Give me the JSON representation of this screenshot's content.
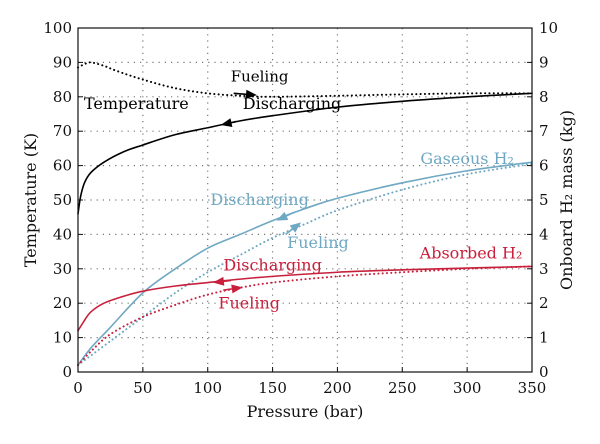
{
  "chart_data": {
    "type": "line",
    "xlabel": "Pressure (bar)",
    "ylabel_left": "Temperature (K)",
    "ylabel_right": "Onboard H₂ mass (kg)",
    "xlim": [
      0,
      350
    ],
    "ylim_left": [
      0,
      100
    ],
    "ylim_right": [
      0,
      10
    ],
    "grid": true,
    "x_ticks": [
      "0",
      "50",
      "100",
      "150",
      "200",
      "250",
      "300",
      "350"
    ],
    "y_left_ticks": [
      "0",
      "10",
      "20",
      "30",
      "40",
      "50",
      "60",
      "70",
      "80",
      "90",
      "100"
    ],
    "y_right_ticks": [
      "0",
      "1",
      "2",
      "3",
      "4",
      "5",
      "6",
      "7",
      "8",
      "9",
      "10"
    ],
    "colors": {
      "temperature": "#000000",
      "gaseous": "#6fa8c2",
      "absorbed": "#c8203c"
    },
    "series": [
      {
        "name": "Temperature",
        "mode": "Discharging",
        "axis": "left",
        "style": "solid",
        "color": "#000000",
        "x": [
          0,
          2,
          5,
          10,
          20,
          35,
          50,
          75,
          100,
          125,
          150,
          200,
          250,
          300,
          350
        ],
        "y": [
          46,
          51,
          55,
          58,
          61,
          64,
          66,
          69,
          71,
          73,
          74.5,
          77,
          78.7,
          80,
          81
        ]
      },
      {
        "name": "Temperature",
        "mode": "Fueling",
        "axis": "left",
        "style": "dotted",
        "color": "#000000",
        "x": [
          0,
          5,
          10,
          20,
          30,
          50,
          75,
          100,
          125,
          150,
          200,
          250,
          300,
          350
        ],
        "y": [
          88.5,
          89.5,
          90,
          89,
          87.5,
          85,
          82.5,
          81,
          80.3,
          80,
          80.3,
          80.7,
          81,
          81
        ]
      },
      {
        "name": "Gaseous H₂",
        "mode": "Discharging",
        "axis": "right",
        "style": "solid",
        "color": "#6fa8c2",
        "x": [
          0,
          10,
          25,
          50,
          75,
          100,
          125,
          150,
          175,
          200,
          250,
          300,
          350
        ],
        "y": [
          0.2,
          0.7,
          1.3,
          2.3,
          3.0,
          3.6,
          4.0,
          4.4,
          4.75,
          5.05,
          5.5,
          5.85,
          6.1
        ]
      },
      {
        "name": "Gaseous H₂",
        "mode": "Fueling",
        "axis": "right",
        "style": "dotted",
        "color": "#6fa8c2",
        "x": [
          0,
          25,
          50,
          75,
          100,
          125,
          150,
          175,
          200,
          250,
          300,
          350
        ],
        "y": [
          0.2,
          0.9,
          1.6,
          2.3,
          2.9,
          3.4,
          3.9,
          4.3,
          4.7,
          5.3,
          5.75,
          6.05
        ]
      },
      {
        "name": "Absorbed H₂",
        "mode": "Discharging",
        "axis": "right",
        "style": "solid",
        "color": "#c8203c",
        "x": [
          0,
          5,
          10,
          20,
          35,
          50,
          75,
          100,
          125,
          150,
          200,
          250,
          300,
          350
        ],
        "y": [
          1.2,
          1.5,
          1.75,
          2.0,
          2.2,
          2.35,
          2.5,
          2.6,
          2.7,
          2.78,
          2.9,
          2.97,
          3.02,
          3.07
        ]
      },
      {
        "name": "Absorbed H₂",
        "mode": "Fueling",
        "axis": "right",
        "style": "dotted",
        "color": "#c8203c",
        "x": [
          0,
          10,
          25,
          50,
          75,
          100,
          125,
          150,
          200,
          250,
          300,
          350
        ],
        "y": [
          0.2,
          0.6,
          1.1,
          1.6,
          1.95,
          2.25,
          2.45,
          2.6,
          2.78,
          2.9,
          3.0,
          3.07
        ]
      }
    ],
    "annotations": [
      {
        "text": "Fueling",
        "color": "#000000",
        "x": 140,
        "y_left": 84.5,
        "size": "normal"
      },
      {
        "text": "Temperature",
        "color": "#000000",
        "x": 45,
        "y_left": 76.5,
        "size": "big"
      },
      {
        "text": "Discharging",
        "color": "#000000",
        "x": 165,
        "y_left": 76.5,
        "size": "big"
      },
      {
        "text": "Gaseous H₂",
        "color": "#6fa8c2",
        "x": 300,
        "y_left": 60.5,
        "size": "big"
      },
      {
        "text": "Discharging",
        "color": "#6fa8c2",
        "x": 140,
        "y_left": 48.5,
        "size": "big"
      },
      {
        "text": "Fueling",
        "color": "#6fa8c2",
        "x": 185,
        "y_left": 36,
        "size": "big"
      },
      {
        "text": "Discharging",
        "color": "#c8203c",
        "x": 150,
        "y_left": 29.5,
        "size": "big"
      },
      {
        "text": "Absorbed H₂",
        "color": "#c8203c",
        "x": 303,
        "y_left": 33,
        "size": "big"
      },
      {
        "text": "Fueling",
        "color": "#c8203c",
        "x": 132,
        "y_left": 18.5,
        "size": "big"
      }
    ],
    "arrows": [
      {
        "series": "Temperature Fueling",
        "color": "#000000",
        "from": [
          120,
          81
        ],
        "to": [
          138,
          80.5
        ]
      },
      {
        "series": "Temperature Discharging",
        "color": "#000000",
        "from": [
          122,
          72.8
        ],
        "to": [
          110,
          71.8
        ]
      },
      {
        "series": "Gaseous Discharging",
        "color": "#6fa8c2",
        "from": [
          167,
          4.65
        ],
        "to": [
          153,
          4.4
        ]
      },
      {
        "series": "Gaseous Fueling",
        "color": "#6fa8c2",
        "from": [
          160,
          4.0
        ],
        "to": [
          172,
          4.35
        ]
      },
      {
        "series": "Absorbed Discharging",
        "color": "#c8203c",
        "from": [
          118,
          2.66
        ],
        "to": [
          104,
          2.6
        ]
      },
      {
        "series": "Absorbed Fueling",
        "color": "#c8203c",
        "from": [
          112,
          2.38
        ],
        "to": [
          127,
          2.46
        ]
      }
    ]
  }
}
